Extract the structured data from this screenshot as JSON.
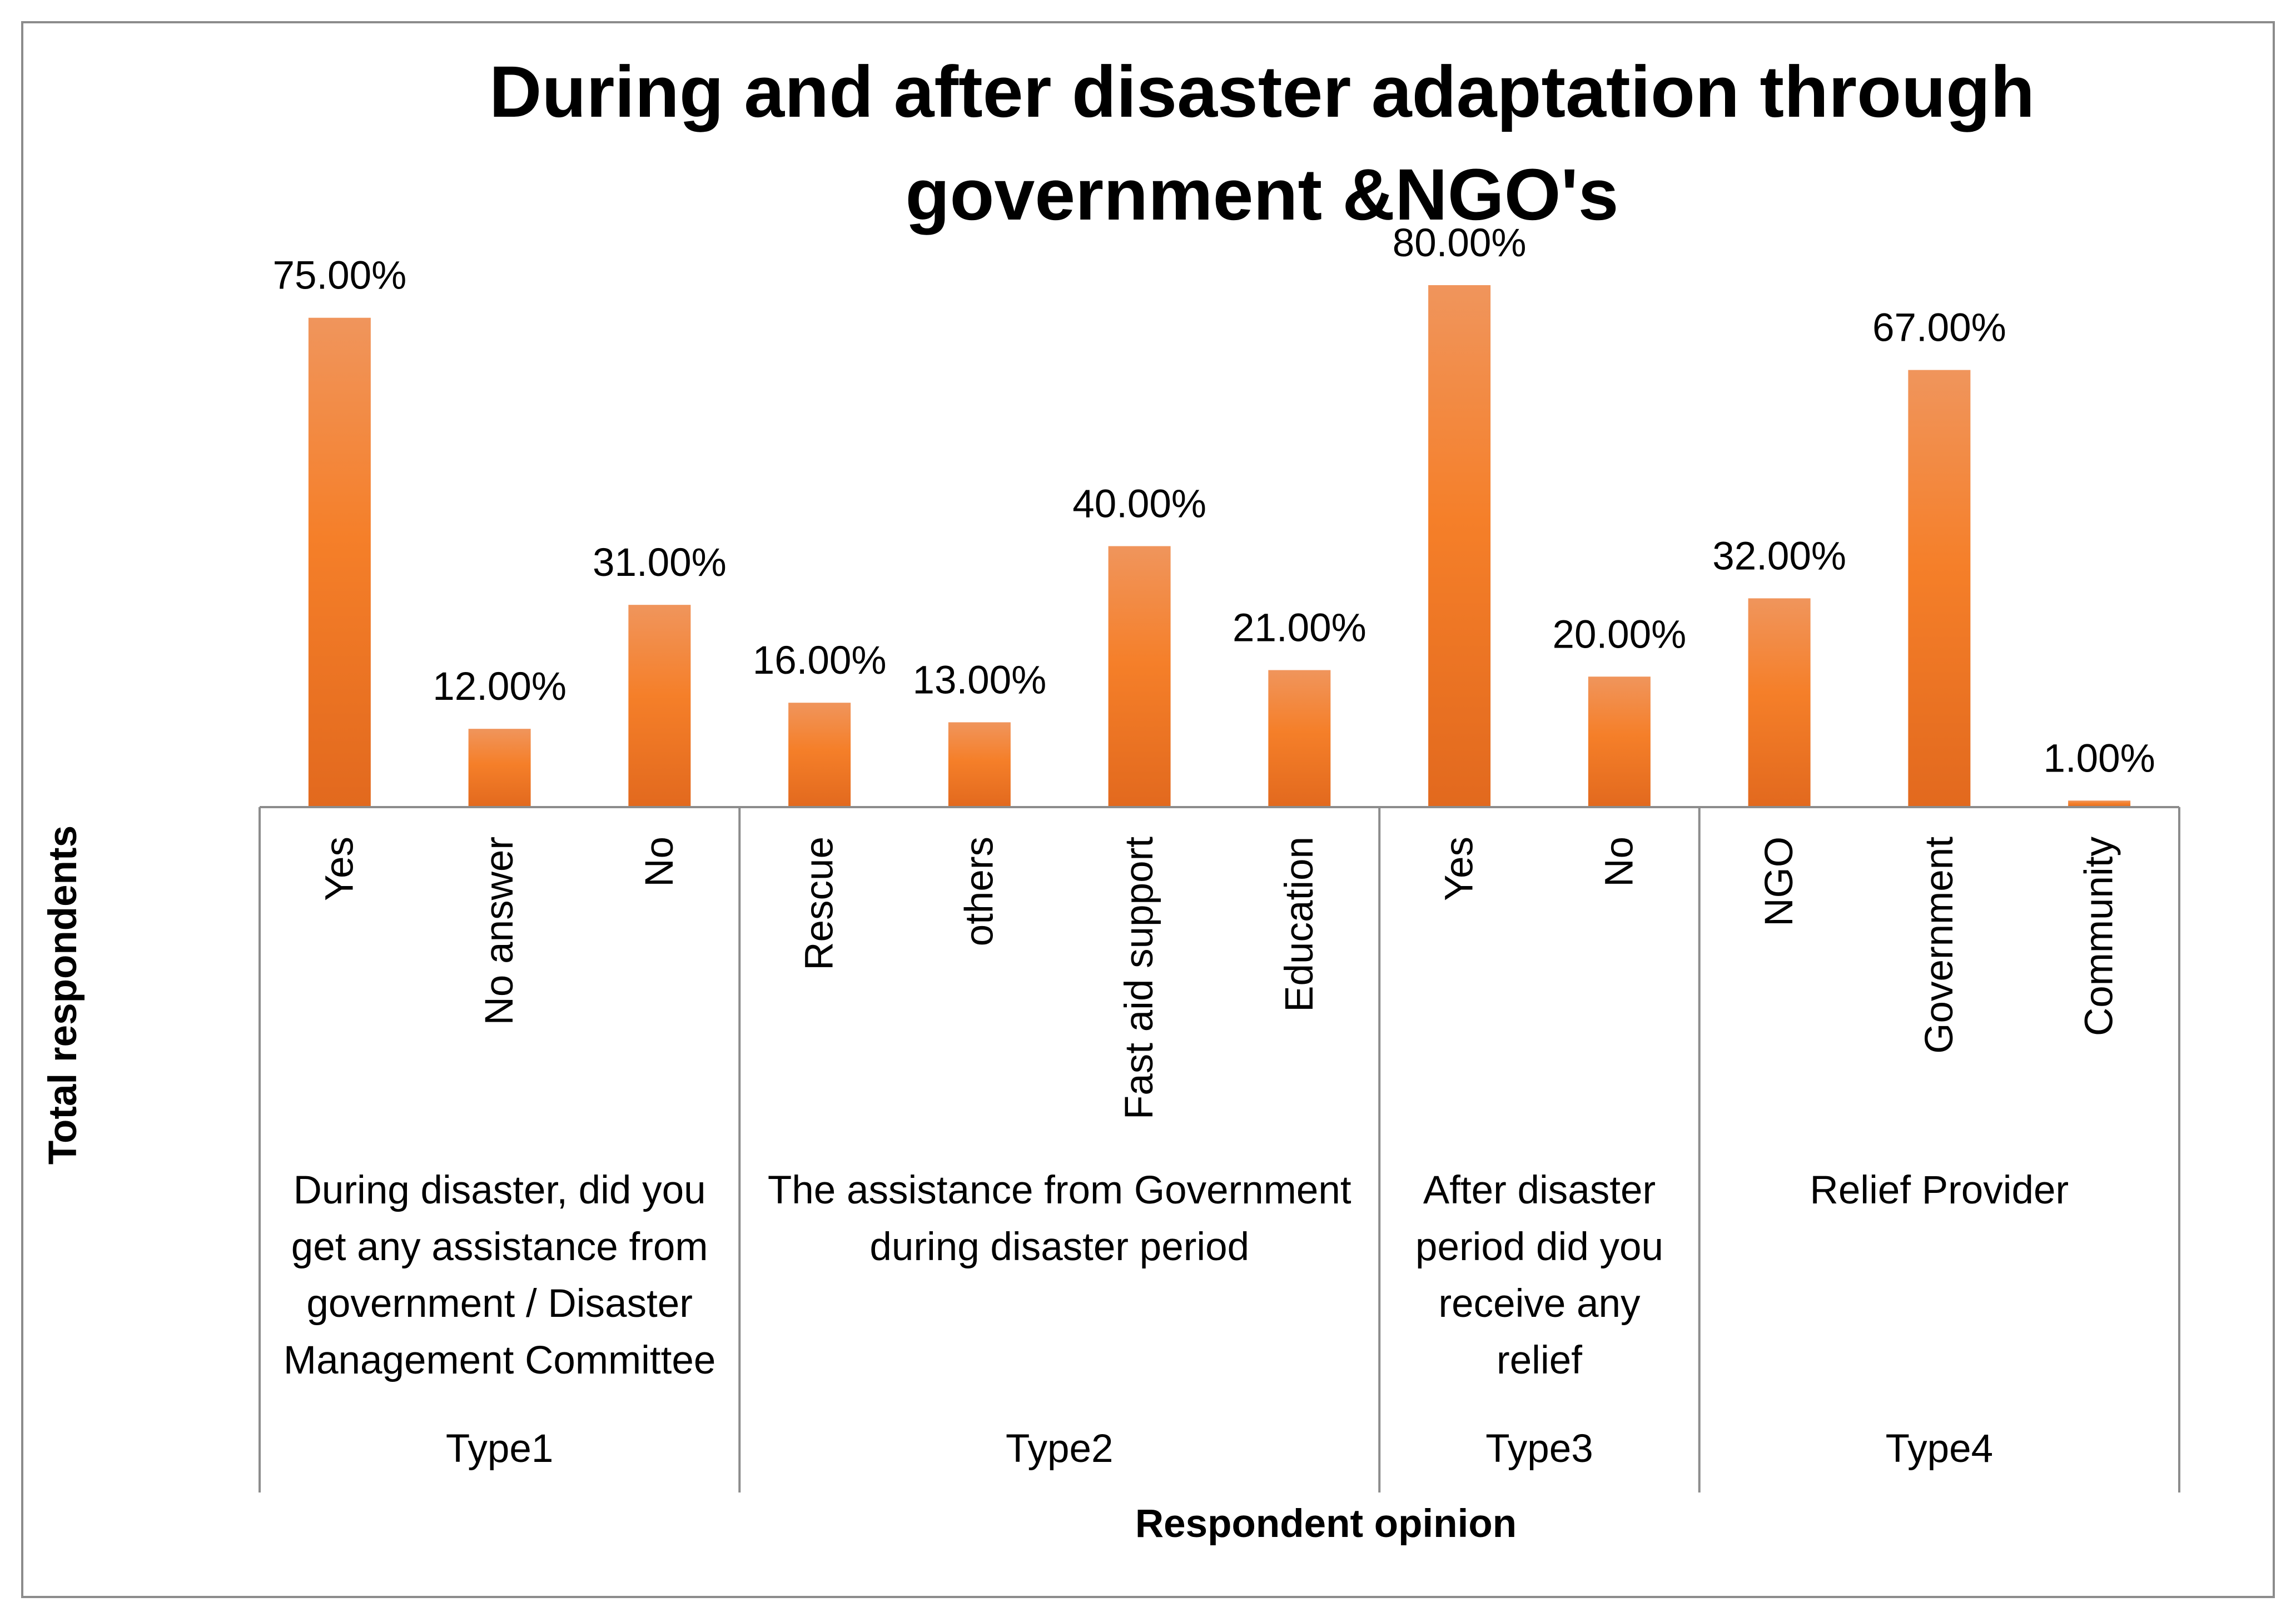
{
  "chart_data": {
    "type": "bar",
    "title_lines": [
      "During and after disaster adaptation through",
      "government &NGO's"
    ],
    "xlabel": "Respondent opinion",
    "ylabel": "Total respondents",
    "ylim": [
      0,
      0.8
    ],
    "value_format": "percent_2dp",
    "groups": [
      {
        "type": "Type1",
        "label_lines": [
          "During disaster, did you",
          "get any assistance from",
          "government / Disaster",
          "Management Committee"
        ],
        "categories": [
          "Yes",
          "No answer",
          "No"
        ],
        "values": [
          0.75,
          0.12,
          0.31
        ]
      },
      {
        "type": "Type2",
        "label_lines": [
          "The assistance from Government",
          "during disaster period"
        ],
        "categories": [
          "Rescue",
          "others",
          "Fast aid support",
          "Education"
        ],
        "values": [
          0.16,
          0.13,
          0.4,
          0.21
        ]
      },
      {
        "type": "Type3",
        "label_lines": [
          "After disaster",
          "period did you",
          "receive any",
          "relief"
        ],
        "categories": [
          "Yes",
          "No"
        ],
        "values": [
          0.8,
          0.2
        ]
      },
      {
        "type": "Type4",
        "label_lines": [
          "Relief Provider"
        ],
        "categories": [
          "NGO",
          "Government",
          "Community"
        ],
        "values": [
          0.32,
          0.67,
          0.01
        ]
      }
    ],
    "colors": {
      "bar_top": "#f0955c",
      "bar_mid": "#f57f29",
      "bar_bottom": "#e2691e",
      "axis": "#8c8c8c",
      "border": "#8c8c8c"
    }
  }
}
